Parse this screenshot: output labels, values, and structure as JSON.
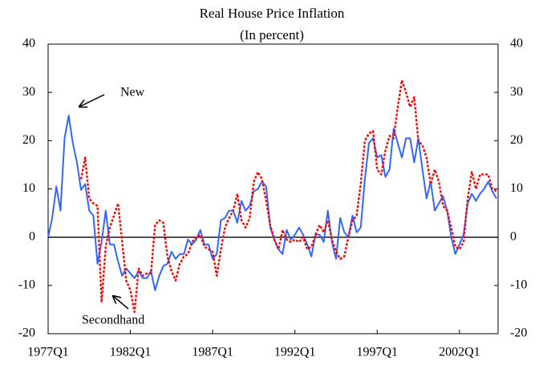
{
  "chart_data": {
    "type": "line",
    "title": "Real House Price Inflation",
    "subtitle": "(In percent)",
    "categories": [
      "1977Q1",
      null,
      null,
      null,
      null,
      null,
      null,
      null,
      null,
      null,
      null,
      null,
      null,
      null,
      null,
      null,
      null,
      null,
      null,
      null,
      "1982Q1",
      null,
      null,
      null,
      null,
      null,
      null,
      null,
      null,
      null,
      null,
      null,
      null,
      null,
      null,
      null,
      null,
      null,
      null,
      null,
      "1987Q1",
      null,
      null,
      null,
      null,
      null,
      null,
      null,
      null,
      null,
      null,
      null,
      null,
      null,
      null,
      null,
      null,
      null,
      null,
      null,
      "1992Q1",
      null,
      null,
      null,
      null,
      null,
      null,
      null,
      null,
      null,
      null,
      null,
      null,
      null,
      null,
      null,
      null,
      null,
      null,
      null,
      "1997Q1",
      null,
      null,
      null,
      null,
      null,
      null,
      null,
      null,
      null,
      null,
      null,
      null,
      null,
      null,
      null,
      null,
      null,
      null,
      null,
      "2002Q1",
      null,
      null,
      null,
      null,
      null,
      null,
      null,
      null,
      null
    ],
    "series": [
      {
        "name": "New",
        "color": "#3366ff",
        "dash": false,
        "values": [
          0,
          4,
          10.5,
          5.5,
          20.5,
          25.2,
          19.5,
          15.5,
          9.8,
          11,
          5.5,
          4.5,
          -5.5,
          -1,
          5.5,
          -1.5,
          -1.5,
          -5,
          -8,
          -6.5,
          -7.5,
          -8.5,
          -7,
          -8.5,
          -8.5,
          -7,
          -11,
          -8,
          -6,
          -5.5,
          -3,
          -4.5,
          -3.5,
          -3.5,
          -0.5,
          -1.5,
          -0.5,
          1.5,
          -1.5,
          -1.5,
          -4.5,
          -3.5,
          3.5,
          4,
          5.5,
          5.5,
          3,
          7.5,
          5.5,
          6.5,
          9.5,
          10,
          11.5,
          10.5,
          2,
          -0.5,
          -2.5,
          -3.5,
          1.5,
          -0.5,
          0.5,
          2,
          0.5,
          -1.5,
          -4,
          0.5,
          0.5,
          -1,
          5.5,
          -1,
          -4.5,
          4,
          1,
          0,
          4.5,
          1,
          2,
          12,
          19.5,
          20.5,
          16.5,
          17,
          12.5,
          14,
          22.5,
          19.5,
          16.5,
          20.5,
          20.5,
          15.5,
          20.5,
          14,
          8,
          11.5,
          5.5,
          7,
          8.5,
          5.5,
          0,
          -3.5,
          -1.5,
          0.5,
          7,
          9,
          7.5,
          9,
          10,
          11.5,
          9.5,
          8
        ]
      },
      {
        "name": "Secondhand",
        "color": "#ff0000",
        "dash": true,
        "values": [
          null,
          null,
          null,
          null,
          null,
          null,
          null,
          null,
          12,
          16.5,
          8,
          7,
          6.5,
          -13.5,
          -2,
          2,
          4.5,
          7,
          -1,
          -9,
          -11,
          -15.5,
          -6.5,
          -8,
          -7.5,
          -7.5,
          2.5,
          3.5,
          3,
          -4,
          -7,
          -9,
          -5.5,
          -4,
          -3.5,
          -1,
          0,
          0.5,
          -2,
          -2.5,
          -3,
          -8,
          -2.5,
          2,
          4,
          5.5,
          9,
          3.5,
          2,
          4,
          11.5,
          13.5,
          12,
          7.5,
          2.5,
          -0.5,
          -2.5,
          1.5,
          -0.5,
          -1,
          -0.5,
          -1,
          0,
          -2.5,
          -2,
          0.5,
          2.5,
          1,
          3.5,
          -0.5,
          -3,
          -4.5,
          -4,
          0,
          3.5,
          4.5,
          11,
          20,
          21.5,
          22,
          14,
          13,
          18,
          21,
          20.5,
          27,
          32.5,
          30,
          27,
          29,
          20,
          19,
          16.5,
          11,
          14,
          11.5,
          6.5,
          5.5,
          2,
          -2,
          -2.5,
          -1,
          8,
          13.5,
          10,
          13,
          13,
          13,
          10,
          9.5
        ]
      }
    ],
    "ylim": [
      -20,
      40
    ],
    "yticks": [
      -20,
      -10,
      0,
      10,
      20,
      30,
      40
    ],
    "y2lim": [
      -20,
      40
    ],
    "y2ticks": [
      -20,
      -10,
      0,
      10,
      20,
      30,
      40
    ],
    "zero_line": true,
    "grid": false
  }
}
